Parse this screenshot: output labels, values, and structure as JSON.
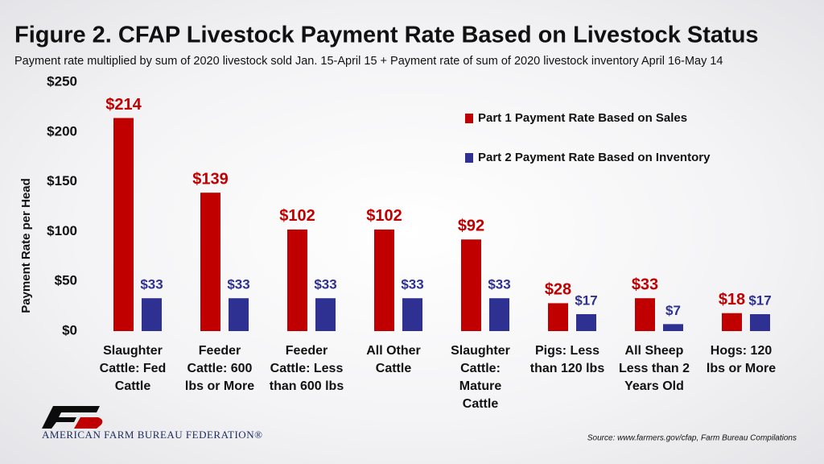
{
  "chart_data": {
    "type": "bar",
    "title": "Figure 2. CFAP Livestock Payment Rate Based on Livestock Status",
    "subtitle": "Payment rate multiplied by sum of 2020 livestock sold Jan. 15-April 15 + Payment rate of sum of 2020 livestock inventory April 16-May 14",
    "y_label": "Payment Rate per Head",
    "categories": [
      "Slaughter\nCattle: Fed\nCattle",
      "Feeder\nCattle: 600\nlbs or More",
      "Feeder\nCattle: Less\nthan 600 lbs",
      "All Other\nCattle",
      "Slaughter\nCattle:\nMature\nCattle",
      "Pigs: Less\nthan 120 lbs",
      "All Sheep\nLess than 2\nYears Old",
      "Hogs: 120\nlbs or More"
    ],
    "series": [
      {
        "name": "Part 1 Payment Rate Based on Sales",
        "color": "#c00000",
        "values": [
          214,
          139,
          102,
          102,
          92,
          28,
          33,
          18
        ],
        "value_labels": [
          "$214",
          "$139",
          "$102",
          "$102",
          "$92",
          "$28",
          "$33",
          "$18"
        ]
      },
      {
        "name": "Part 2 Payment Rate Based on Inventory",
        "color": "#2e3192",
        "values": [
          33,
          33,
          33,
          33,
          33,
          17,
          7,
          17
        ],
        "value_labels": [
          "$33",
          "$33",
          "$33",
          "$33",
          "$33",
          "$17",
          "$7",
          "$17"
        ]
      }
    ],
    "ylim": [
      0,
      250
    ],
    "yticks": [
      {
        "value": 0,
        "label": "$0"
      },
      {
        "value": 50,
        "label": "$50"
      },
      {
        "value": 100,
        "label": "$100"
      },
      {
        "value": 150,
        "label": "$150"
      },
      {
        "value": 200,
        "label": "$200"
      },
      {
        "value": 250,
        "label": "$250"
      }
    ],
    "grid": false,
    "legend": "upper right",
    "source": "Source: www.farmers.gov/cfap, Farm Bureau Compilations",
    "organization": "AMERICAN FARM BUREAU FEDERATION®"
  }
}
